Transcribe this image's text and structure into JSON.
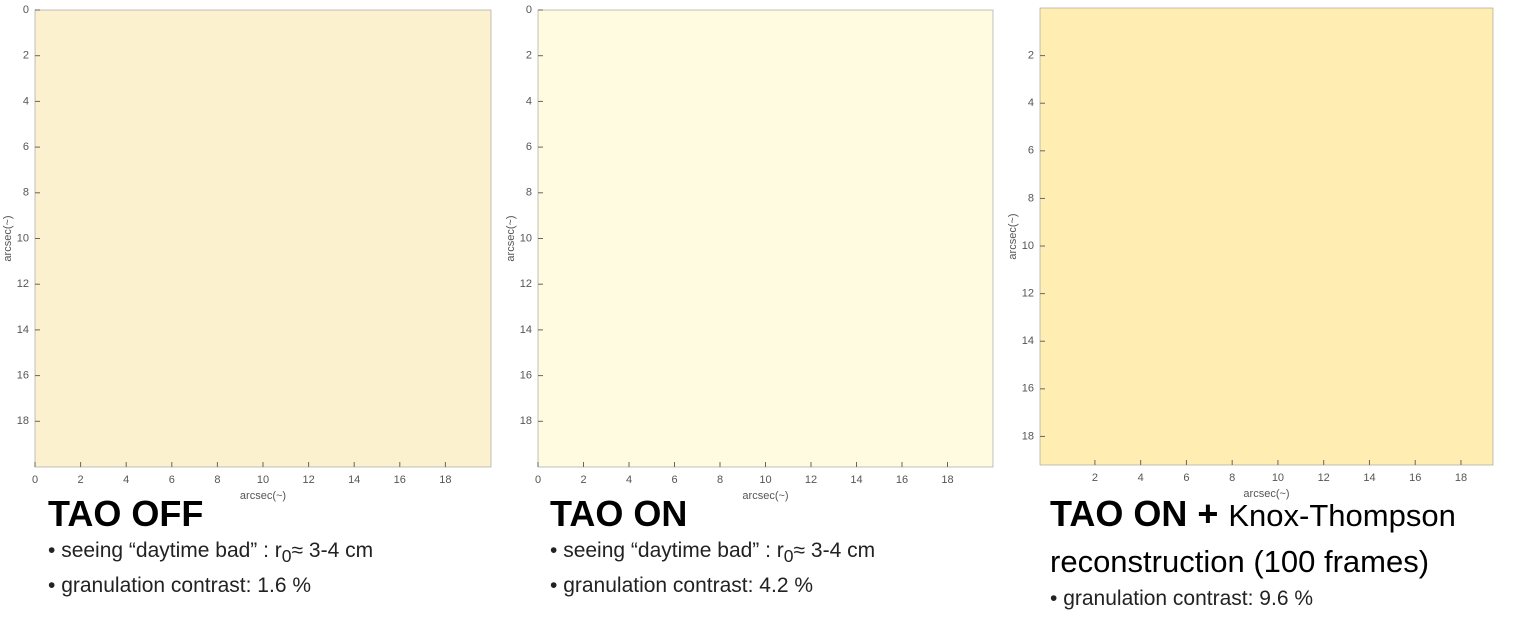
{
  "panels": [
    {
      "title": "TAO OFF",
      "x_label": "arcsec(~)",
      "y_label": "arcsec(~)",
      "xlim": [
        0,
        20
      ],
      "ylim": [
        0,
        20
      ],
      "xticks": [
        0,
        2,
        4,
        6,
        8,
        10,
        12,
        14,
        16,
        18
      ],
      "yticks": [
        0,
        2,
        4,
        6,
        8,
        10,
        12,
        14,
        16,
        18
      ],
      "bullets": [
        {
          "text": "seeing “daytime bad” : r",
          "sub": "0",
          "rest": "≈ 3-4 cm"
        },
        {
          "text": "granulation contrast: 1.6 %"
        }
      ]
    },
    {
      "title": "TAO ON",
      "x_label": "arcsec(~)",
      "y_label": "arcsec(~)",
      "xlim": [
        0,
        20
      ],
      "ylim": [
        0,
        20
      ],
      "xticks": [
        0,
        2,
        4,
        6,
        8,
        10,
        12,
        14,
        16,
        18
      ],
      "yticks": [
        0,
        2,
        4,
        6,
        8,
        10,
        12,
        14,
        16,
        18
      ],
      "bullets": [
        {
          "text": "seeing “daytime bad” : r",
          "sub": "0",
          "rest": "≈ 3-4 cm"
        },
        {
          "text": "granulation contrast: 4.2 %"
        }
      ]
    },
    {
      "title": "TAO ON +",
      "subtitle": "Knox-Thompson reconstruction (100 frames)",
      "x_label": "arcsec(~)",
      "y_label": "arcsec(~)",
      "xlim": [
        -0.4,
        19.4
      ],
      "ylim": [
        0,
        19.2
      ],
      "xticks": [
        2,
        4,
        6,
        8,
        10,
        12,
        14,
        16,
        18
      ],
      "yticks": [
        2,
        4,
        6,
        8,
        10,
        12,
        14,
        16,
        18
      ],
      "bullets": [
        {
          "text": "granulation contrast: 9.6 %"
        }
      ]
    }
  ]
}
